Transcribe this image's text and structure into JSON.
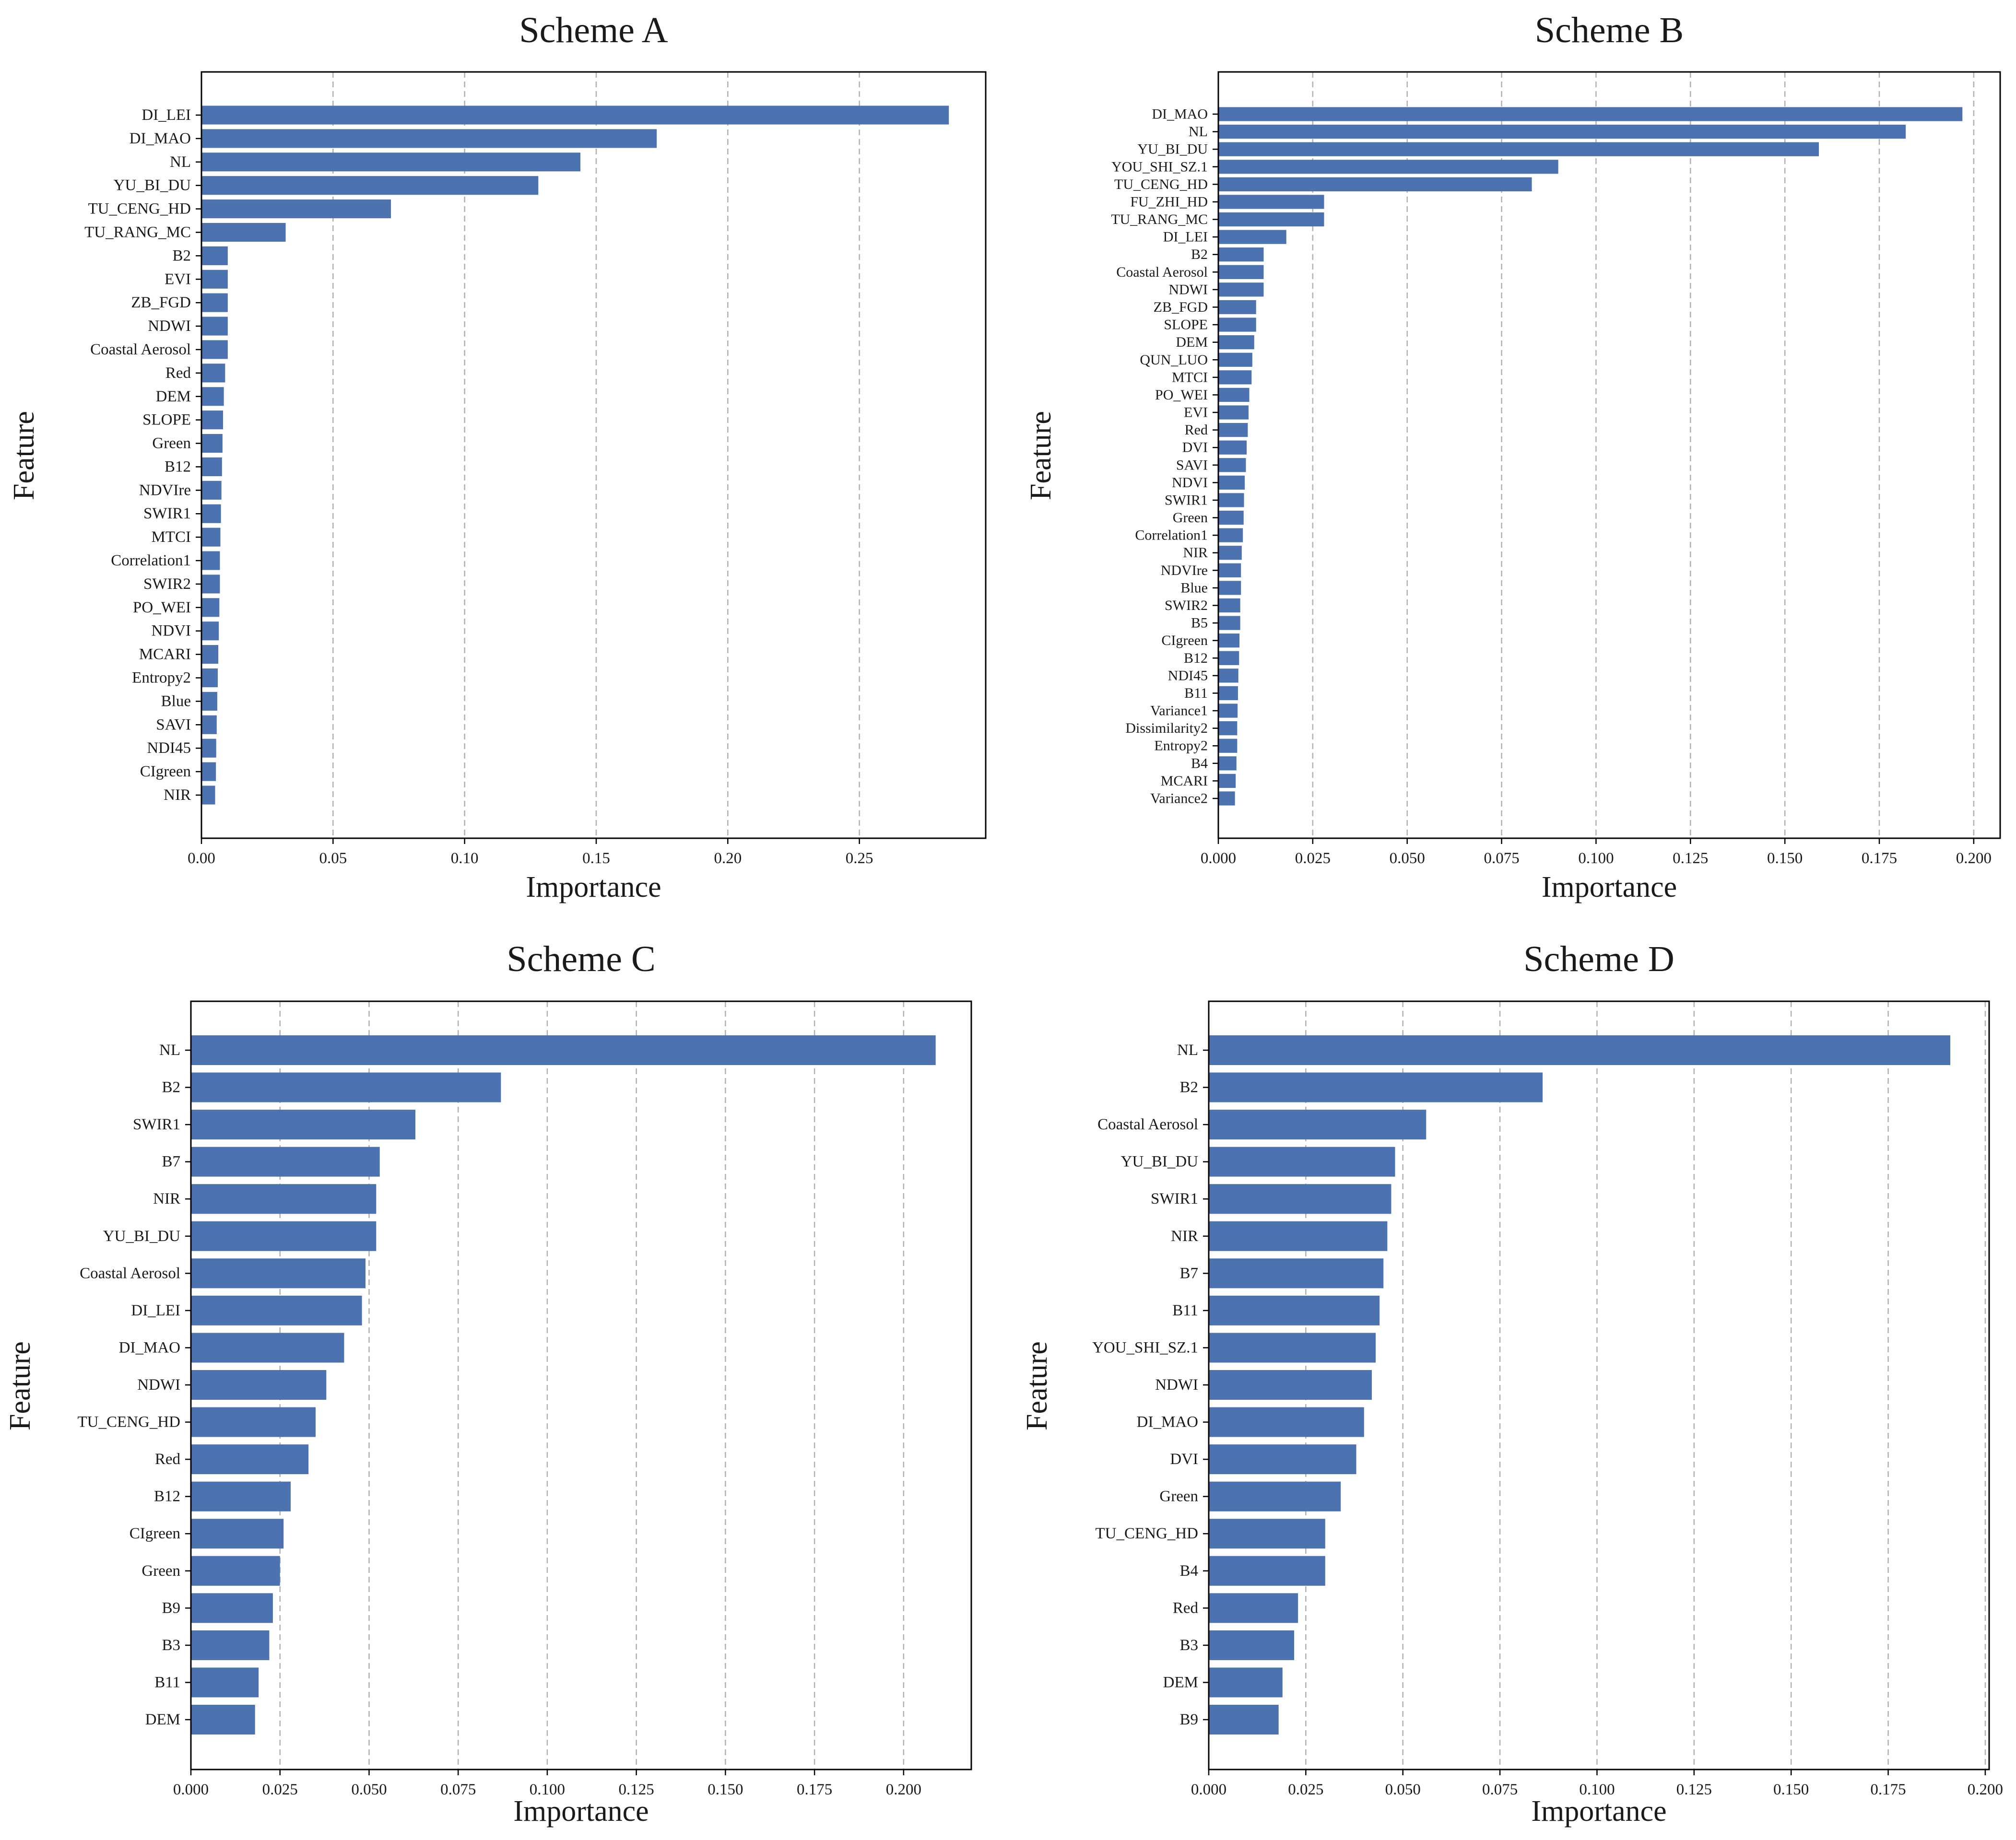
{
  "colors": {
    "bar": "#4c72b0",
    "grid": "#b0b0b0",
    "axis": "#000000",
    "background": "#ffffff"
  },
  "chart_data": [
    {
      "type": "bar",
      "orientation": "horizontal",
      "title": "Scheme A",
      "xlabel": "Importance",
      "ylabel": "Feature",
      "xlim": [
        0,
        0.298
      ],
      "xticks": [
        0.0,
        0.05,
        0.1,
        0.15,
        0.2,
        0.25
      ],
      "xtick_labels": [
        "0.00",
        "0.05",
        "0.10",
        "0.15",
        "0.20",
        "0.25"
      ],
      "grid": "x-dashed",
      "categories": [
        "DI_LEI",
        "DI_MAO",
        "NL",
        "YU_BI_DU",
        "TU_CENG_HD",
        "TU_RANG_MC",
        "B2",
        "EVI",
        "ZB_FGD",
        "NDWI",
        "Coastal Aerosol",
        "Red",
        "DEM",
        "SLOPE",
        "Green",
        "B12",
        "NDVIre",
        "SWIR1",
        "MTCI",
        "Correlation1",
        "SWIR2",
        "PO_WEI",
        "NDVI",
        "MCARI",
        "Entropy2",
        "Blue",
        "SAVI",
        "NDI45",
        "CIgreen",
        "NIR"
      ],
      "values": [
        0.284,
        0.173,
        0.144,
        0.128,
        0.072,
        0.032,
        0.01,
        0.01,
        0.01,
        0.01,
        0.01,
        0.009,
        0.0085,
        0.0082,
        0.008,
        0.0078,
        0.0076,
        0.0074,
        0.0072,
        0.007,
        0.007,
        0.0068,
        0.0066,
        0.0064,
        0.0062,
        0.006,
        0.0058,
        0.0056,
        0.0055,
        0.0052
      ]
    },
    {
      "type": "bar",
      "orientation": "horizontal",
      "title": "Scheme B",
      "xlabel": "Importance",
      "ylabel": "Feature",
      "xlim": [
        0,
        0.207
      ],
      "xticks": [
        0.0,
        0.025,
        0.05,
        0.075,
        0.1,
        0.125,
        0.15,
        0.175,
        0.2
      ],
      "xtick_labels": [
        "0.000",
        "0.025",
        "0.050",
        "0.075",
        "0.100",
        "0.125",
        "0.150",
        "0.175",
        "0.200"
      ],
      "grid": "x-dashed",
      "categories": [
        "DI_MAO",
        "NL",
        "YU_BI_DU",
        "YOU_SHI_SZ.1",
        "TU_CENG_HD",
        "FU_ZHI_HD",
        "TU_RANG_MC",
        "DI_LEI",
        "B2",
        "Coastal Aerosol",
        "NDWI",
        "ZB_FGD",
        "SLOPE",
        "DEM",
        "QUN_LUO",
        "MTCI",
        "PO_WEI",
        "EVI",
        "Red",
        "DVI",
        "SAVI",
        "NDVI",
        "SWIR1",
        "Green",
        "Correlation1",
        "NIR",
        "NDVIre",
        "Blue",
        "SWIR2",
        "B5",
        "CIgreen",
        "B12",
        "NDI45",
        "B11",
        "Variance1",
        "Dissimilarity2",
        "Entropy2",
        "B4",
        "MCARI",
        "Variance2"
      ],
      "values": [
        0.197,
        0.182,
        0.159,
        0.09,
        0.083,
        0.028,
        0.028,
        0.018,
        0.012,
        0.012,
        0.012,
        0.01,
        0.01,
        0.0095,
        0.009,
        0.0088,
        0.0082,
        0.008,
        0.0078,
        0.0075,
        0.0073,
        0.007,
        0.0068,
        0.0067,
        0.0065,
        0.0062,
        0.006,
        0.006,
        0.0058,
        0.0058,
        0.0056,
        0.0055,
        0.0053,
        0.0052,
        0.0051,
        0.005,
        0.005,
        0.0048,
        0.0046,
        0.0044
      ]
    },
    {
      "type": "bar",
      "orientation": "horizontal",
      "title": "Scheme C",
      "xlabel": "Importance",
      "ylabel": "Feature",
      "xlim": [
        0,
        0.219
      ],
      "xticks": [
        0.0,
        0.025,
        0.05,
        0.075,
        0.1,
        0.125,
        0.15,
        0.175,
        0.2
      ],
      "xtick_labels": [
        "0.000",
        "0.025",
        "0.050",
        "0.075",
        "0.100",
        "0.125",
        "0.150",
        "0.175",
        "0.200"
      ],
      "grid": "x-dashed",
      "categories": [
        "NL",
        "B2",
        "SWIR1",
        "B7",
        "NIR",
        "YU_BI_DU",
        "Coastal Aerosol",
        "DI_LEI",
        "DI_MAO",
        "NDWI",
        "TU_CENG_HD",
        "Red",
        "B12",
        "CIgreen",
        "Green",
        "B9",
        "B3",
        "B11",
        "DEM"
      ],
      "values": [
        0.209,
        0.087,
        0.063,
        0.053,
        0.052,
        0.052,
        0.049,
        0.048,
        0.043,
        0.038,
        0.035,
        0.033,
        0.028,
        0.026,
        0.025,
        0.023,
        0.022,
        0.019,
        0.018
      ]
    },
    {
      "type": "bar",
      "orientation": "horizontal",
      "title": "Scheme D",
      "xlabel": "Importance",
      "ylabel": "Feature",
      "xlim": [
        0,
        0.201
      ],
      "xticks": [
        0.0,
        0.025,
        0.05,
        0.075,
        0.1,
        0.125,
        0.15,
        0.175,
        0.2
      ],
      "xtick_labels": [
        "0.000",
        "0.025",
        "0.050",
        "0.075",
        "0.100",
        "0.125",
        "0.150",
        "0.175",
        "0.200"
      ],
      "grid": "x-dashed",
      "categories": [
        "NL",
        "B2",
        "Coastal Aerosol",
        "YU_BI_DU",
        "SWIR1",
        "NIR",
        "B7",
        "B11",
        "YOU_SHI_SZ.1",
        "NDWI",
        "DI_MAO",
        "DVI",
        "Green",
        "TU_CENG_HD",
        "B4",
        "Red",
        "B3",
        "DEM",
        "B9"
      ],
      "values": [
        0.191,
        0.086,
        0.056,
        0.048,
        0.047,
        0.046,
        0.045,
        0.044,
        0.043,
        0.042,
        0.04,
        0.038,
        0.034,
        0.03,
        0.03,
        0.023,
        0.022,
        0.019,
        0.018
      ]
    }
  ]
}
